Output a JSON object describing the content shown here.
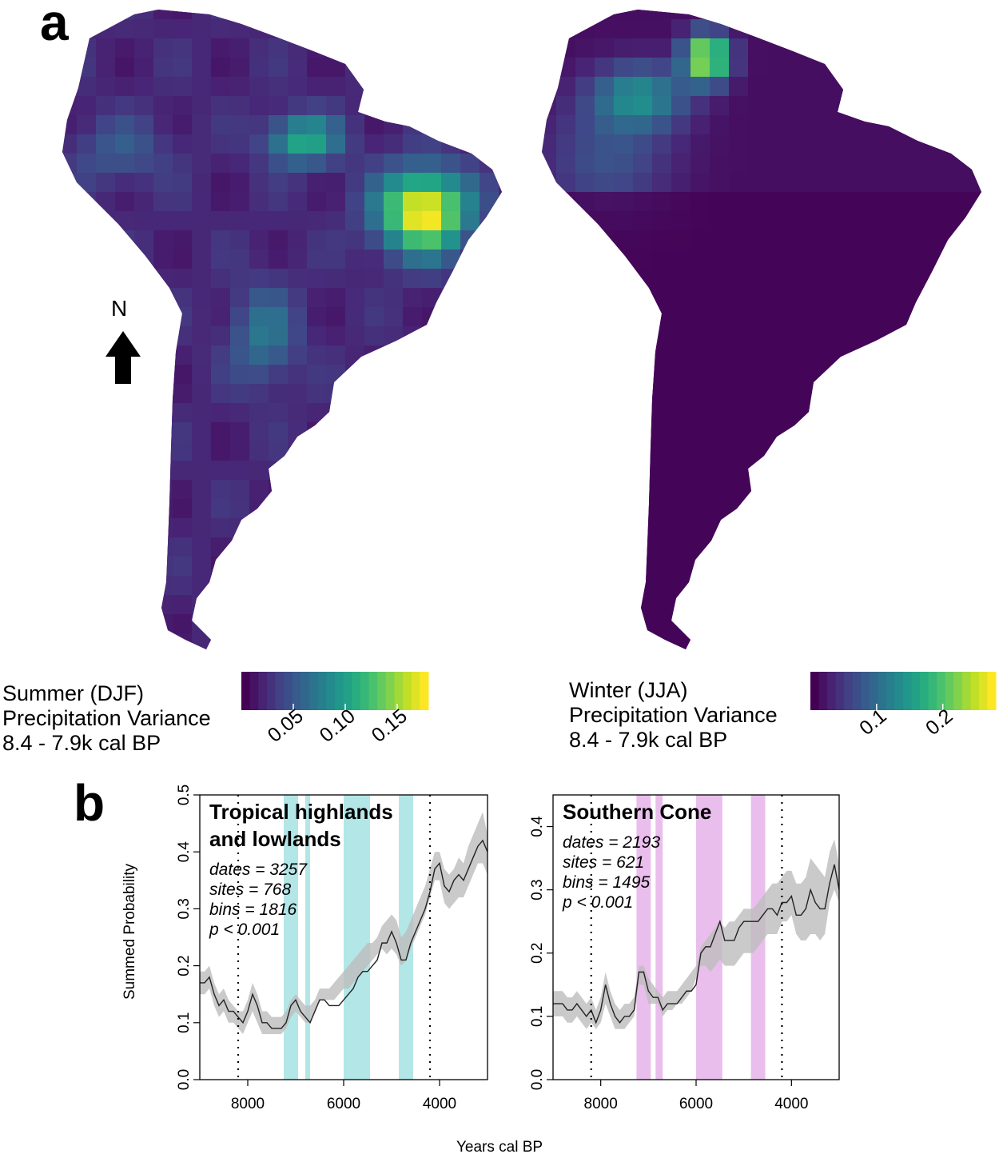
{
  "panel_labels": {
    "a": "a",
    "b": "b"
  },
  "north_arrow": {
    "label": "N",
    "icon": "north-arrow-icon"
  },
  "chart_data": [
    {
      "type": "heatmap",
      "panel": "a",
      "subtype": "choropleth-map",
      "region": "South America",
      "legend": {
        "title_lines": [
          "Summer (DJF)",
          "Precipitation Variance",
          "8.4 - 7.9k cal BP"
        ],
        "ticks": [
          0.05,
          0.1,
          0.15
        ],
        "tick_labels": [
          "0.05",
          "0.10",
          "0.15"
        ],
        "range": [
          0,
          0.18
        ],
        "colormap": "viridis"
      },
      "hotspots": [
        {
          "area": "northeastern Brazil",
          "value": 0.18
        },
        {
          "area": "central Amazon",
          "value": 0.1
        },
        {
          "area": "south-central Brazil",
          "value": 0.07
        }
      ]
    },
    {
      "type": "heatmap",
      "panel": "a",
      "subtype": "choropleth-map",
      "region": "South America",
      "legend": {
        "title_lines": [
          "Winter (JJA)",
          "Precipitation Variance",
          "8.4 - 7.9k cal BP"
        ],
        "ticks": [
          0.1,
          0.2
        ],
        "tick_labels": [
          "0.1",
          "0.2"
        ],
        "range": [
          0,
          0.28
        ],
        "colormap": "viridis"
      },
      "hotspots": [
        {
          "area": "northern Venezuela",
          "value": 0.28
        },
        {
          "area": "northwestern South America",
          "value": 0.12
        }
      ]
    },
    {
      "type": "line",
      "panel": "b",
      "title_lines": [
        "Tropical highlands",
        "and lowlands"
      ],
      "stats_lines": [
        "dates = 3257",
        "sites = 768",
        "bins = 1816",
        "p < 0.001"
      ],
      "xlim": [
        9000,
        3000
      ],
      "ylim": [
        0,
        0.5
      ],
      "xticks": [
        8000,
        6000,
        4000
      ],
      "xtick_labels": [
        "8000",
        "6000",
        "4000"
      ],
      "yticks": [
        0.0,
        0.1,
        0.2,
        0.3,
        0.4,
        0.5
      ],
      "ytick_labels": [
        "0.0",
        "0.1",
        "0.2",
        "0.3",
        "0.4",
        "0.5"
      ],
      "reference_lines": [
        8200,
        4200
      ],
      "highlight_color": "#9adede",
      "highlight_bands": [
        [
          7250,
          6950
        ],
        [
          6800,
          6700
        ],
        [
          6000,
          5450
        ],
        [
          4850,
          4550
        ]
      ],
      "x": [
        9000,
        8900,
        8800,
        8700,
        8600,
        8500,
        8400,
        8300,
        8200,
        8100,
        8000,
        7900,
        7800,
        7700,
        7600,
        7500,
        7400,
        7300,
        7200,
        7100,
        7000,
        6900,
        6800,
        6700,
        6600,
        6500,
        6400,
        6300,
        6200,
        6100,
        6000,
        5900,
        5800,
        5700,
        5600,
        5500,
        5400,
        5300,
        5200,
        5100,
        5000,
        4900,
        4800,
        4700,
        4600,
        4500,
        4400,
        4300,
        4200,
        4100,
        4000,
        3900,
        3800,
        3700,
        3600,
        3500,
        3400,
        3300,
        3200,
        3100,
        3000
      ],
      "y": [
        0.17,
        0.17,
        0.18,
        0.15,
        0.13,
        0.14,
        0.12,
        0.12,
        0.11,
        0.1,
        0.12,
        0.15,
        0.13,
        0.1,
        0.1,
        0.09,
        0.09,
        0.09,
        0.1,
        0.13,
        0.14,
        0.12,
        0.11,
        0.1,
        0.12,
        0.14,
        0.14,
        0.13,
        0.13,
        0.13,
        0.14,
        0.15,
        0.16,
        0.18,
        0.19,
        0.19,
        0.2,
        0.21,
        0.24,
        0.24,
        0.26,
        0.24,
        0.21,
        0.21,
        0.24,
        0.26,
        0.28,
        0.3,
        0.33,
        0.37,
        0.38,
        0.34,
        0.33,
        0.35,
        0.36,
        0.35,
        0.37,
        0.39,
        0.41,
        0.42,
        0.4
      ],
      "band_low": [
        0.15,
        0.15,
        0.16,
        0.13,
        0.11,
        0.12,
        0.1,
        0.1,
        0.09,
        0.08,
        0.1,
        0.12,
        0.1,
        0.08,
        0.08,
        0.08,
        0.08,
        0.08,
        0.09,
        0.11,
        0.12,
        0.11,
        0.1,
        0.1,
        0.12,
        0.14,
        0.14,
        0.14,
        0.14,
        0.15,
        0.16,
        0.16,
        0.17,
        0.18,
        0.19,
        0.2,
        0.21,
        0.22,
        0.23,
        0.22,
        0.23,
        0.22,
        0.2,
        0.21,
        0.23,
        0.25,
        0.27,
        0.29,
        0.32,
        0.35,
        0.35,
        0.31,
        0.3,
        0.31,
        0.32,
        0.32,
        0.34,
        0.36,
        0.38,
        0.38,
        0.36
      ],
      "band_high": [
        0.19,
        0.19,
        0.2,
        0.17,
        0.15,
        0.16,
        0.14,
        0.13,
        0.12,
        0.12,
        0.14,
        0.17,
        0.15,
        0.12,
        0.12,
        0.11,
        0.11,
        0.11,
        0.12,
        0.14,
        0.15,
        0.14,
        0.13,
        0.13,
        0.14,
        0.16,
        0.16,
        0.16,
        0.17,
        0.18,
        0.19,
        0.2,
        0.21,
        0.22,
        0.23,
        0.24,
        0.24,
        0.25,
        0.27,
        0.28,
        0.29,
        0.28,
        0.25,
        0.26,
        0.28,
        0.3,
        0.32,
        0.34,
        0.37,
        0.4,
        0.4,
        0.37,
        0.36,
        0.37,
        0.39,
        0.38,
        0.41,
        0.43,
        0.45,
        0.47,
        0.43
      ]
    },
    {
      "type": "line",
      "panel": "b",
      "title_lines": [
        "Southern Cone"
      ],
      "stats_lines": [
        "dates = 2193",
        "sites = 621",
        "bins = 1495",
        "p < 0.001"
      ],
      "xlim": [
        9000,
        3000
      ],
      "ylim": [
        0,
        0.45
      ],
      "xticks": [
        8000,
        6000,
        4000
      ],
      "xtick_labels": [
        "8000",
        "6000",
        "4000"
      ],
      "yticks": [
        0.0,
        0.1,
        0.2,
        0.3,
        0.4
      ],
      "ytick_labels": [
        "0.0",
        "0.1",
        "0.2",
        "0.3",
        "0.4"
      ],
      "reference_lines": [
        8200,
        4200
      ],
      "highlight_color": "#e3a8e6",
      "highlight_bands": [
        [
          7250,
          6950
        ],
        [
          6850,
          6700
        ],
        [
          6000,
          5450
        ],
        [
          4850,
          4550
        ]
      ],
      "x": [
        9000,
        8900,
        8800,
        8700,
        8600,
        8500,
        8400,
        8300,
        8200,
        8100,
        8000,
        7900,
        7800,
        7700,
        7600,
        7500,
        7400,
        7300,
        7200,
        7100,
        7000,
        6900,
        6800,
        6700,
        6600,
        6500,
        6400,
        6300,
        6200,
        6100,
        6000,
        5900,
        5800,
        5700,
        5600,
        5500,
        5400,
        5300,
        5200,
        5100,
        5000,
        4900,
        4800,
        4700,
        4600,
        4500,
        4400,
        4300,
        4200,
        4100,
        4000,
        3900,
        3800,
        3700,
        3600,
        3500,
        3400,
        3300,
        3200,
        3100,
        3000
      ],
      "y": [
        0.12,
        0.12,
        0.12,
        0.11,
        0.11,
        0.12,
        0.11,
        0.1,
        0.11,
        0.09,
        0.11,
        0.15,
        0.12,
        0.1,
        0.09,
        0.1,
        0.1,
        0.11,
        0.17,
        0.17,
        0.14,
        0.13,
        0.13,
        0.11,
        0.12,
        0.12,
        0.12,
        0.13,
        0.14,
        0.14,
        0.15,
        0.2,
        0.21,
        0.21,
        0.23,
        0.25,
        0.22,
        0.22,
        0.22,
        0.24,
        0.25,
        0.25,
        0.25,
        0.25,
        0.26,
        0.27,
        0.27,
        0.26,
        0.28,
        0.28,
        0.29,
        0.26,
        0.26,
        0.27,
        0.3,
        0.28,
        0.27,
        0.27,
        0.31,
        0.34,
        0.3
      ],
      "band_low": [
        0.1,
        0.1,
        0.1,
        0.09,
        0.09,
        0.1,
        0.09,
        0.08,
        0.09,
        0.08,
        0.09,
        0.12,
        0.1,
        0.08,
        0.08,
        0.08,
        0.09,
        0.1,
        0.15,
        0.15,
        0.12,
        0.12,
        0.12,
        0.1,
        0.11,
        0.11,
        0.12,
        0.12,
        0.13,
        0.14,
        0.16,
        0.18,
        0.18,
        0.17,
        0.18,
        0.19,
        0.18,
        0.18,
        0.18,
        0.19,
        0.2,
        0.2,
        0.2,
        0.21,
        0.22,
        0.23,
        0.23,
        0.23,
        0.25,
        0.25,
        0.26,
        0.23,
        0.22,
        0.22,
        0.23,
        0.23,
        0.22,
        0.23,
        0.28,
        0.3,
        0.28
      ],
      "band_high": [
        0.14,
        0.14,
        0.14,
        0.13,
        0.13,
        0.14,
        0.13,
        0.12,
        0.13,
        0.11,
        0.13,
        0.17,
        0.14,
        0.12,
        0.11,
        0.12,
        0.12,
        0.13,
        0.18,
        0.18,
        0.16,
        0.15,
        0.14,
        0.13,
        0.14,
        0.14,
        0.14,
        0.15,
        0.16,
        0.17,
        0.18,
        0.21,
        0.22,
        0.23,
        0.24,
        0.25,
        0.24,
        0.25,
        0.25,
        0.26,
        0.27,
        0.27,
        0.27,
        0.28,
        0.29,
        0.3,
        0.31,
        0.31,
        0.32,
        0.33,
        0.33,
        0.31,
        0.31,
        0.32,
        0.35,
        0.34,
        0.33,
        0.32,
        0.36,
        0.38,
        0.34
      ]
    }
  ],
  "shared_axes": {
    "ylabel": "Summed Probability",
    "xlabel": "Years cal BP"
  },
  "colors": {
    "viridis": [
      "#440154",
      "#482475",
      "#414487",
      "#355f8d",
      "#2a788e",
      "#21908d",
      "#22a884",
      "#42be71",
      "#7ad151",
      "#bddf26",
      "#fde725"
    ],
    "land_low": "#440154",
    "confidence_band": "#bdbdbd",
    "line": "#222222"
  }
}
